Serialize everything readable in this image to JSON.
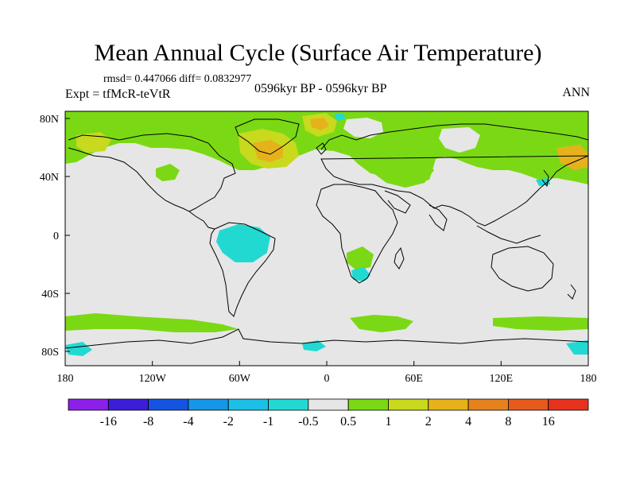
{
  "title": "Mean Annual Cycle (Surface Air Temperature)",
  "stats": "rmsd= 0.447066 diff= 0.0832977",
  "experiment": "Expt = tfMcR-teVtR",
  "period": "0596kyr BP - 0596kyr BP",
  "season": "ANN",
  "axes": {
    "lon_ticks": [
      "180",
      "120W",
      "60W",
      "0",
      "60E",
      "120E",
      "180"
    ],
    "lat_ticks": [
      "80N",
      "40N",
      "0",
      "40S",
      "80S"
    ]
  },
  "colorbar": {
    "labels": [
      "-16",
      "-8",
      "-4",
      "-2",
      "-1",
      "-0.5",
      "0.5",
      "1",
      "2",
      "4",
      "8",
      "16"
    ],
    "colors": [
      "#8c1fe8",
      "#3b1ed6",
      "#1454e0",
      "#1696e6",
      "#1ebfe6",
      "#22d9d2",
      "#e6e6e6",
      "#7ad914",
      "#c8d91e",
      "#e6b21c",
      "#e6821e",
      "#e65a1e",
      "#e6321e"
    ]
  },
  "field_colors": {
    "neutral": "#e6e6e6",
    "warm1": "#7ad914",
    "warm2": "#c8d91e",
    "warm3": "#e6b21c",
    "cool1": "#22d9d2"
  }
}
